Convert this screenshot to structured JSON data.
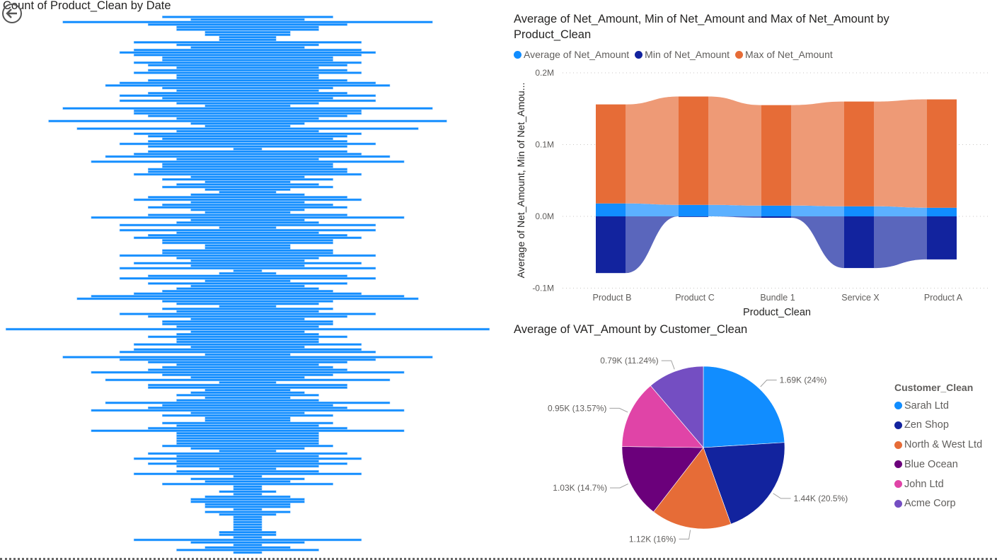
{
  "nav": {
    "back_icon": "arrow-left-circle-icon"
  },
  "chart_data": [
    {
      "type": "funnel",
      "title": "Count of Product_Clean by Date",
      "color": "#118DFF",
      "values": [
        6,
        4,
        13,
        7,
        5,
        5,
        3,
        3,
        2,
        2,
        8,
        5,
        4,
        8,
        9,
        8,
        6,
        6,
        8,
        7,
        5,
        7,
        8,
        5,
        5,
        7,
        9,
        10,
        6,
        5,
        7,
        9,
        6,
        9,
        5,
        3,
        13,
        8,
        8,
        7,
        5,
        14,
        4,
        3,
        12,
        5,
        8,
        7,
        6,
        7,
        9,
        7,
        1,
        7,
        8,
        10,
        5,
        11,
        6,
        6,
        7,
        7,
        8,
        4,
        6,
        3,
        5,
        6,
        3,
        2,
        4,
        7,
        8,
        4,
        6,
        7,
        4,
        3,
        7,
        11,
        4,
        5,
        9,
        2,
        9,
        5,
        7,
        8,
        6,
        6,
        3,
        3,
        6,
        6,
        9,
        5,
        4,
        8,
        4,
        9,
        1,
        2,
        7,
        9,
        3,
        7,
        4,
        5,
        6,
        8,
        11,
        12,
        6,
        5,
        2,
        6,
        5,
        9,
        7,
        4,
        6,
        6,
        5,
        17,
        4,
        5,
        7,
        5,
        5,
        8,
        4,
        8,
        9,
        3,
        13,
        9,
        7,
        5,
        6,
        7,
        11,
        6,
        4,
        10,
        2,
        7,
        7,
        3,
        4,
        5,
        3,
        5,
        10,
        6,
        7,
        11,
        4,
        6,
        3,
        3,
        6,
        5,
        7,
        11,
        5,
        5,
        5,
        5,
        5,
        6,
        4,
        2,
        7,
        5,
        8,
        5,
        7,
        5,
        2,
        5,
        8,
        1,
        4,
        3,
        6,
        1,
        1,
        2,
        1,
        3,
        4,
        4,
        3,
        3,
        1,
        3,
        2,
        1,
        1,
        1,
        1,
        1,
        1,
        2,
        2,
        1,
        8,
        4,
        1,
        3,
        5,
        1
      ]
    },
    {
      "type": "ribbon",
      "title": "Average of Net_Amount, Min of Net_Amount and Max of Net_Amount by Product_Clean",
      "xlabel": "Product_Clean",
      "ylabel": "Average of Net_Amount, Min of Net_Amou...",
      "categories": [
        "Product B",
        "Product C",
        "Bundle 1",
        "Service X",
        "Product A"
      ],
      "ylim": [
        -100000,
        200000
      ],
      "yticks": [
        {
          "v": 200000,
          "label": "0.2M"
        },
        {
          "v": 100000,
          "label": "0.1M"
        },
        {
          "v": 0,
          "label": "0.0M"
        },
        {
          "v": -100000,
          "label": "-0.1M"
        }
      ],
      "grid": true,
      "legend_position": "top-left",
      "series": [
        {
          "name": "Average of Net_Amount",
          "color": "#118DFF",
          "ribbon_color": "#5CB0FF",
          "values": [
            18000,
            16000,
            15000,
            14000,
            12000
          ]
        },
        {
          "name": "Min of Net_Amount",
          "color": "#12239E",
          "ribbon_color": "#5A66BC",
          "values": [
            -79000,
            0,
            -2000,
            -72000,
            -60000
          ]
        },
        {
          "name": "Max of Net_Amount",
          "color": "#E66C37",
          "ribbon_color": "#EE9A76",
          "values": [
            138000,
            151000,
            140000,
            146000,
            151000
          ]
        }
      ]
    },
    {
      "type": "pie",
      "title": "Average of VAT_Amount by Customer_Clean",
      "legend_title": "Customer_Clean",
      "legend_position": "right",
      "slices": [
        {
          "name": "Sarah Ltd",
          "value": 1690,
          "label": "1.69K (24%)",
          "percent": 24,
          "color": "#118DFF"
        },
        {
          "name": "Zen Shop",
          "value": 1440,
          "label": "1.44K (20.5%)",
          "percent": 20.5,
          "color": "#12239E"
        },
        {
          "name": "North & West Ltd",
          "value": 1120,
          "label": "1.12K (16%)",
          "percent": 16,
          "color": "#E66C37"
        },
        {
          "name": "Blue Ocean",
          "value": 1030,
          "label": "1.03K (14.7%)",
          "percent": 14.7,
          "color": "#6B007B"
        },
        {
          "name": "John Ltd",
          "value": 950,
          "label": "0.95K (13.57%)",
          "percent": 13.57,
          "color": "#E044A7"
        },
        {
          "name": "Acme Corp",
          "value": 790,
          "label": "0.79K (11.24%)",
          "percent": 11.24,
          "color": "#744EC2"
        }
      ]
    }
  ]
}
